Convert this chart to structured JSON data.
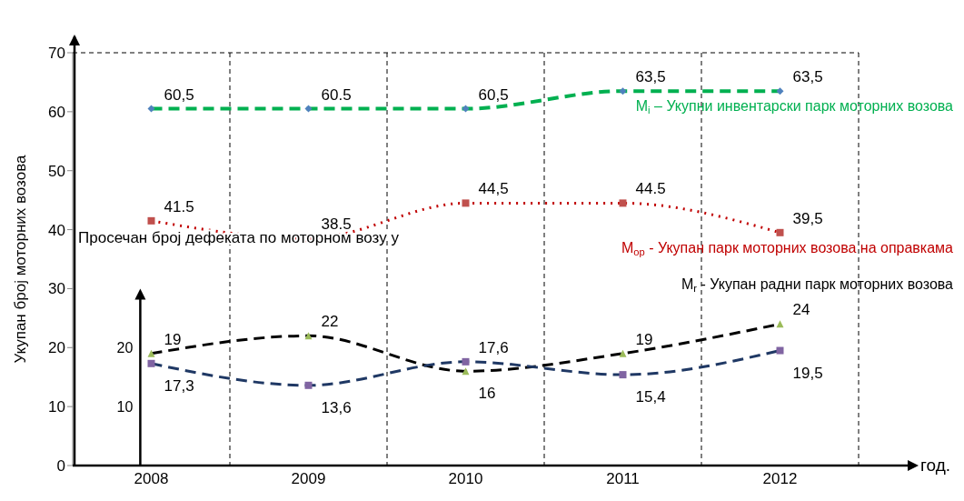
{
  "chart_data": {
    "type": "line",
    "ylabel": "Укупан број моторних возова",
    "xlabel": "год.",
    "y2label": "Просечан број дефеката по моторном возу у",
    "categories": [
      "2008",
      "2009",
      "2010",
      "2011",
      "2012"
    ],
    "ylim": [
      0,
      70
    ],
    "yticks": [
      0,
      10,
      20,
      30,
      40,
      50,
      60,
      70
    ],
    "y2lim": [
      0,
      70
    ],
    "y2ticks": [
      10,
      20
    ],
    "grid": true,
    "series": [
      {
        "name": "M$_{i}$ – Укупни инвентарски парк моторних возова",
        "color": "#00b050",
        "colors": [
          "#4f81bd",
          "#4f81bd",
          "#4f81bd",
          "#4f81bd",
          "#4f81bd"
        ],
        "marker": "diamond",
        "line_style": "dashed",
        "values": [
          60.5,
          60.5,
          60.5,
          63.5,
          63.5
        ],
        "value_labels": [
          "60,5",
          "60.5",
          "60,5",
          "63,5",
          "63,5"
        ]
      },
      {
        "name": "M$_{op}$ - Укупан парк моторних возова на оправкама",
        "color": "#c00000",
        "colors": [
          "#c0504d",
          "#c0504d",
          "#c0504d",
          "#c0504d",
          "#c0504d"
        ],
        "marker": "square",
        "line_style": "dotted",
        "values": [
          41.5,
          38.5,
          44.5,
          44.5,
          39.5
        ],
        "value_labels": [
          "41.5",
          "38.5",
          "44,5",
          "44.5",
          "39,5"
        ]
      },
      {
        "name": "M$_{r}$ - Укупан радни парк моторних возова",
        "color": "#000000",
        "colors": [
          "#9bbb59",
          "#9bbb59",
          "#9bbb59",
          "#9bbb59",
          "#9bbb59"
        ],
        "marker": "triangle",
        "line_style": "dashed",
        "values": [
          19,
          22,
          16,
          19,
          24
        ],
        "value_labels": [
          "19",
          "22",
          "16",
          "19",
          "24"
        ]
      },
      {
        "color": "#1f3864",
        "colors": [
          "#8064a2",
          "#8064a2",
          "#8064a2",
          "#8064a2",
          "#8064a2"
        ],
        "marker": "square",
        "line_style": "dashed",
        "values": [
          17.3,
          13.6,
          17.6,
          15.4,
          19.5
        ],
        "value_labels": [
          "17,3",
          "13,6",
          "17,6",
          "15,4",
          "19,5"
        ]
      }
    ]
  }
}
